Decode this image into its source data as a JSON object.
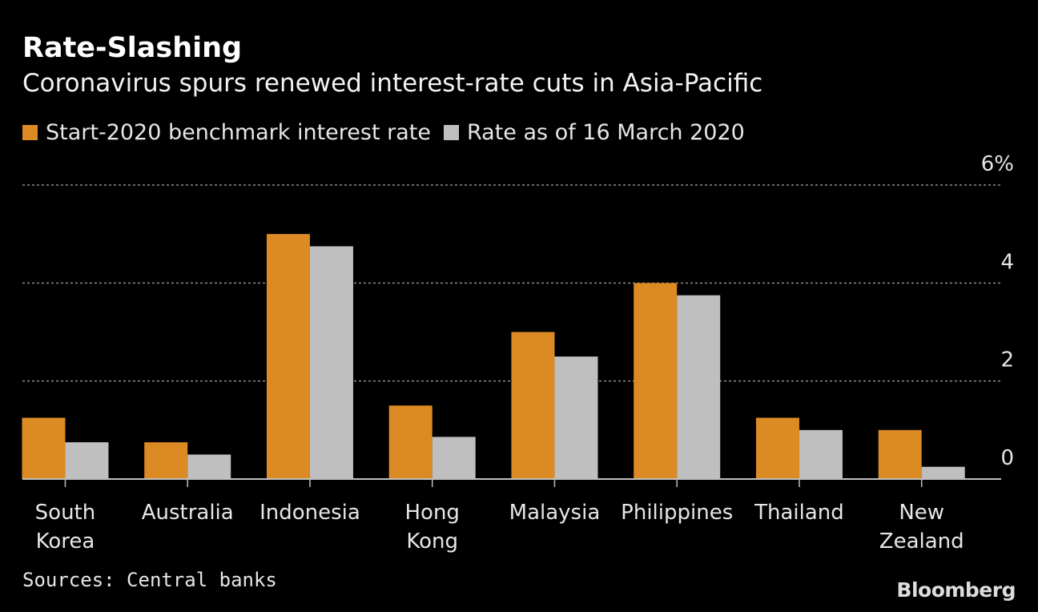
{
  "chart_data": {
    "type": "bar",
    "title": "Rate-Slashing",
    "subtitle": "Coronavirus spurs renewed interest-rate cuts in Asia-Pacific",
    "categories": [
      [
        "South",
        "Korea"
      ],
      [
        "Australia"
      ],
      [
        "Indonesia"
      ],
      [
        "Hong",
        "Kong"
      ],
      [
        "Malaysia"
      ],
      [
        "Philippines"
      ],
      [
        "Thailand"
      ],
      [
        "New",
        "Zealand"
      ]
    ],
    "series": [
      {
        "name": "Start-2020 benchmark interest rate",
        "color": "#dc8a24",
        "values": [
          1.25,
          0.75,
          5.0,
          1.5,
          3.0,
          4.0,
          1.25,
          1.0
        ]
      },
      {
        "name": "Rate as of 16 March 2020",
        "color": "#bfbfbf",
        "values": [
          0.75,
          0.5,
          4.75,
          0.86,
          2.5,
          3.75,
          1.0,
          0.25
        ]
      }
    ],
    "yticks": [
      {
        "value": 0,
        "label": "0"
      },
      {
        "value": 2,
        "label": "2"
      },
      {
        "value": 4,
        "label": "4"
      },
      {
        "value": 6,
        "label": "6%"
      }
    ],
    "ylim": [
      0,
      6
    ],
    "xlabel": "",
    "ylabel": "",
    "grid": true,
    "legend_position": "top-left"
  },
  "footer": {
    "source": "Sources: Central banks",
    "logo": "Bloomberg"
  }
}
